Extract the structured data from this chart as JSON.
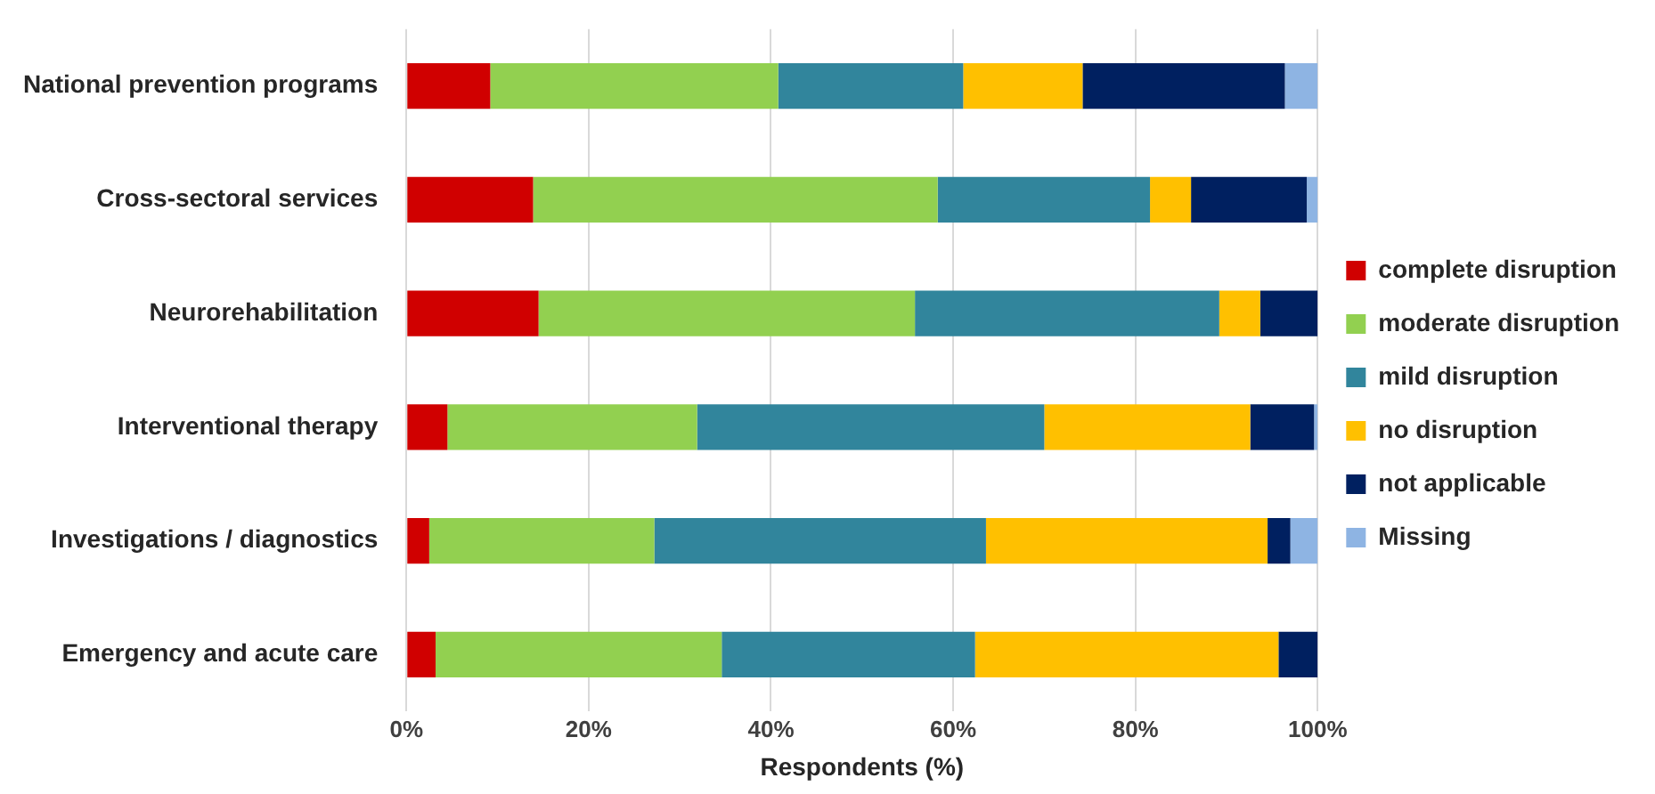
{
  "chart_data": {
    "type": "bar",
    "orientation": "horizontal",
    "stacked": true,
    "xlabel": "Respondents (%)",
    "categories": [
      "National prevention programs",
      "Cross-sectoral services",
      "Neurorehabilitation",
      "Interventional therapy",
      "Investigations / diagnostics",
      "Emergency and acute care"
    ],
    "series": [
      {
        "name": "complete disruption",
        "color": "#d00000",
        "values": [
          9.2,
          13.9,
          14.5,
          4.5,
          2.5,
          3.2
        ]
      },
      {
        "name": "moderate disruption",
        "color": "#92d050",
        "values": [
          31.6,
          44.4,
          41.3,
          27.4,
          24.7,
          31.4
        ]
      },
      {
        "name": "mild disruption",
        "color": "#31859c",
        "values": [
          20.3,
          23.3,
          33.4,
          38.1,
          36.4,
          27.8
        ]
      },
      {
        "name": "no disruption",
        "color": "#ffc000",
        "values": [
          13.1,
          4.5,
          4.5,
          22.6,
          30.9,
          33.3
        ]
      },
      {
        "name": "not applicable",
        "color": "#002060",
        "values": [
          22.2,
          12.7,
          6.3,
          7.0,
          2.5,
          4.3
        ]
      },
      {
        "name": "Missing",
        "color": "#8eb4e3",
        "values": [
          3.6,
          1.2,
          0,
          0.4,
          3.0,
          0
        ]
      }
    ],
    "xlim": [
      0,
      100
    ],
    "xticks": [
      {
        "value": 0,
        "label": "0%"
      },
      {
        "value": 20,
        "label": "20%"
      },
      {
        "value": 40,
        "label": "40%"
      },
      {
        "value": 60,
        "label": "60%"
      },
      {
        "value": 80,
        "label": "80%"
      },
      {
        "value": 100,
        "label": "100%"
      }
    ],
    "grid": "x",
    "legend": "right"
  }
}
